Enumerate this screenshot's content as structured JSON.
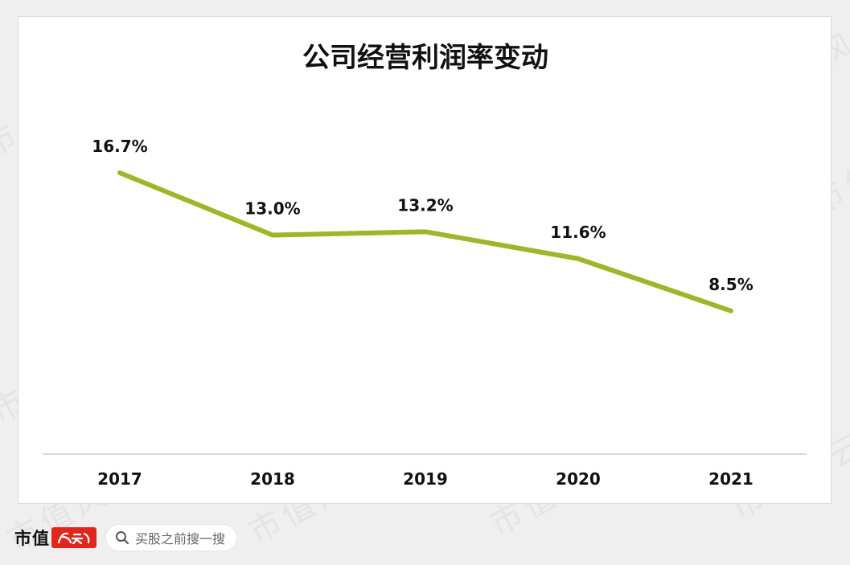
{
  "chart_data": {
    "type": "line",
    "title": "公司经营利润率变动",
    "categories": [
      "2017",
      "2018",
      "2019",
      "2020",
      "2021"
    ],
    "series": [
      {
        "values": [
          16.7,
          13.0,
          13.2,
          11.6,
          8.5
        ],
        "labels": [
          "16.7%",
          "13.0%",
          "13.2%",
          "11.6%",
          "8.5%"
        ],
        "color": "#9fb52a"
      }
    ],
    "ylabel": "",
    "xlabel": "",
    "ylim": [
      0,
      25
    ],
    "grid": false,
    "legend": "none",
    "axis_color": "#d9d9d9"
  },
  "watermark": {
    "text": "市值风云"
  },
  "footer": {
    "brand_text": "市值",
    "brand_seal_text": "风云",
    "search_placeholder": "买股之前搜一搜",
    "search_icon": "magnifier-icon"
  },
  "colors": {
    "page_bg": "#efeff0",
    "card_bg": "#ffffff",
    "brand_red": "#e1261c"
  }
}
